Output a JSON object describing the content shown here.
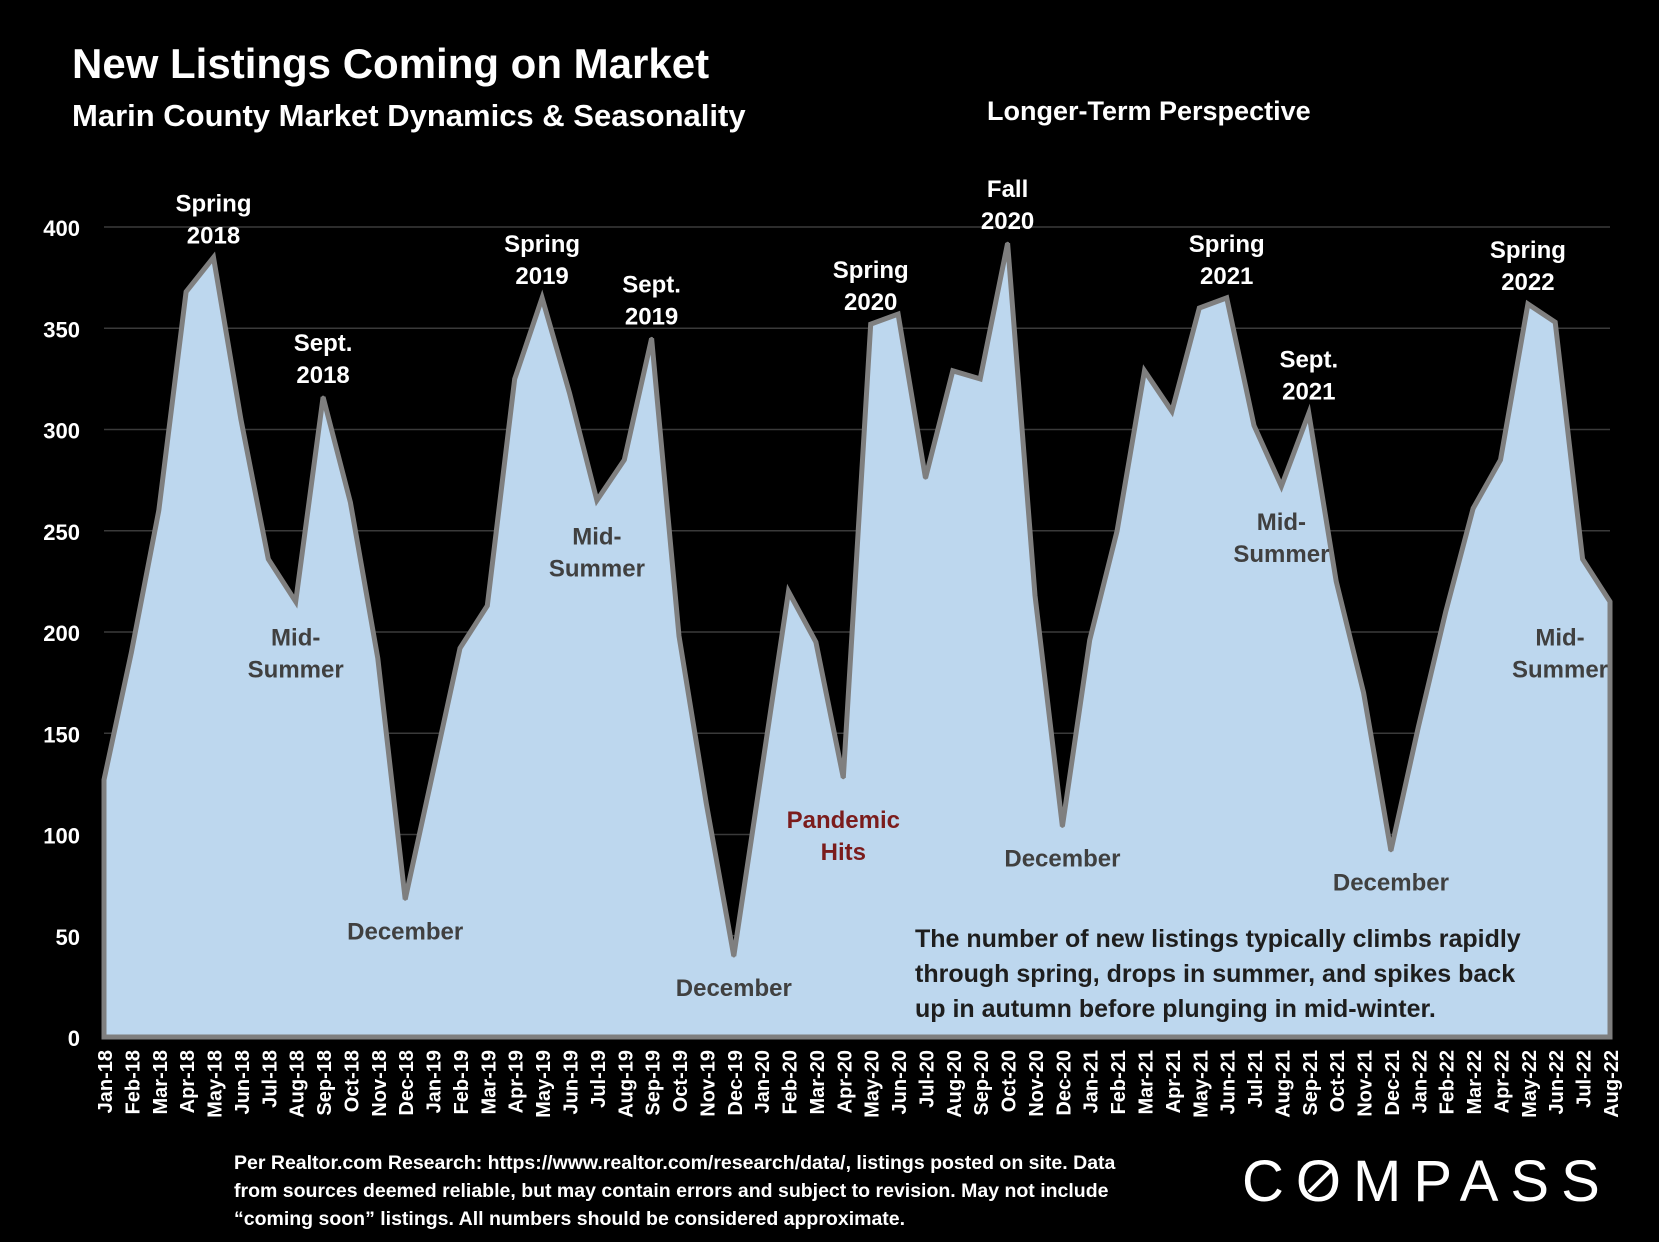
{
  "header": {
    "title": "New Listings Coming on Market",
    "subtitle": "Marin County Market Dynamics & Seasonality",
    "perspective": "Longer-Term Perspective"
  },
  "footnote": {
    "lines": [
      "Per Realtor.com Research:  https://www.realtor.com/research/data/, listings posted on site. Data",
      "from sources deemed reliable, but may contain errors and subject to revision. May not include",
      "“coming soon” listings. All numbers should be considered approximate."
    ]
  },
  "logo": {
    "text": "COMPASS"
  },
  "colors": {
    "background": "#000000",
    "area_fill": "#bdd7ee",
    "area_stroke": "#7f7f7f",
    "annotation_dark": "#404040",
    "annotation_pandemic": "#7b1c1c",
    "text": "#ffffff"
  },
  "chart_data": {
    "type": "area",
    "title": "New Listings Coming on Market",
    "categories": [
      "Jan-18",
      "Feb-18",
      "Mar-18",
      "Apr-18",
      "May-18",
      "Jun-18",
      "Jul-18",
      "Aug-18",
      "Sep-18",
      "Oct-18",
      "Nov-18",
      "Dec-18",
      "Jan-19",
      "Feb-19",
      "Mar-19",
      "Apr-19",
      "May-19",
      "Jun-19",
      "Jul-19",
      "Aug-19",
      "Sep-19",
      "Oct-19",
      "Nov-19",
      "Dec-19",
      "Jan-20",
      "Feb-20",
      "Mar-20",
      "Apr-20",
      "May-20",
      "Jun-20",
      "Jul-20",
      "Aug-20",
      "Sep-20",
      "Oct-20",
      "Nov-20",
      "Dec-20",
      "Jan-21",
      "Feb-21",
      "Mar-21",
      "Apr-21",
      "May-21",
      "Jun-21",
      "Jul-21",
      "Aug-21",
      "Sep-21",
      "Oct-21",
      "Nov-21",
      "Dec-21",
      "Jan-22",
      "Feb-22",
      "Mar-22",
      "Apr-22",
      "May-22",
      "Jun-22",
      "Jul-22",
      "Aug-22"
    ],
    "series": [
      {
        "values": [
          127,
          190,
          260,
          368,
          385,
          305,
          236,
          215,
          316,
          264,
          187,
          68,
          130,
          192,
          213,
          325,
          365,
          318,
          265,
          285,
          345,
          198,
          115,
          40,
          130,
          220,
          195,
          128,
          352,
          357,
          276,
          329,
          325,
          392,
          218,
          104,
          196,
          250,
          329,
          309,
          360,
          365,
          302,
          272,
          308,
          225,
          170,
          92,
          153,
          210,
          261,
          285,
          362,
          353,
          236,
          215
        ]
      }
    ],
    "y_ticks": [
      "0",
      "50",
      "100",
      "150",
      "200",
      "250",
      "300",
      "350",
      "400"
    ],
    "ylim": [
      0,
      400
    ],
    "grid": true,
    "annotations": [
      {
        "lines": [
          "Spring",
          "2018"
        ],
        "month": "May-18",
        "tone": "light"
      },
      {
        "lines": [
          "Sept.",
          "2018"
        ],
        "month": "Sep-18",
        "tone": "light"
      },
      {
        "lines": [
          "Mid-",
          "Summer"
        ],
        "month": "Aug-18",
        "tone": "dark"
      },
      {
        "lines": [
          "December"
        ],
        "month": "Dec-18",
        "tone": "dark"
      },
      {
        "lines": [
          "Spring",
          "2019"
        ],
        "month": "May-19",
        "tone": "light"
      },
      {
        "lines": [
          "Sept.",
          "2019"
        ],
        "month": "Sep-19",
        "tone": "light"
      },
      {
        "lines": [
          "Mid-",
          "Summer"
        ],
        "month": "Jul-19",
        "tone": "dark"
      },
      {
        "lines": [
          "December"
        ],
        "month": "Dec-19",
        "tone": "dark"
      },
      {
        "lines": [
          "Pandemic",
          "Hits"
        ],
        "month": "Apr-20",
        "tone": "pandemic"
      },
      {
        "lines": [
          "Spring",
          "2020"
        ],
        "month": "May-20",
        "tone": "light"
      },
      {
        "lines": [
          "Fall",
          "2020"
        ],
        "month": "Oct-20",
        "tone": "light"
      },
      {
        "lines": [
          "December"
        ],
        "month": "Dec-20",
        "tone": "dark"
      },
      {
        "lines": [
          "Spring",
          "2021"
        ],
        "month": "Jun-21",
        "tone": "light"
      },
      {
        "lines": [
          "Sept.",
          "2021"
        ],
        "month": "Sep-21",
        "tone": "light"
      },
      {
        "lines": [
          "Mid-",
          "Summer"
        ],
        "month": "Aug-21",
        "tone": "dark"
      },
      {
        "lines": [
          "December"
        ],
        "month": "Dec-21",
        "tone": "dark"
      },
      {
        "lines": [
          "Spring",
          "2022"
        ],
        "month": "May-22",
        "tone": "light"
      },
      {
        "lines": [
          "Mid-",
          "Summer"
        ],
        "month": "Aug-22",
        "tone": "dark"
      }
    ],
    "callout": {
      "lines": [
        "The number of new listings typically climbs rapidly",
        "through spring, drops in summer, and spikes back",
        "up in autumn before plunging in mid-winter."
      ]
    }
  }
}
